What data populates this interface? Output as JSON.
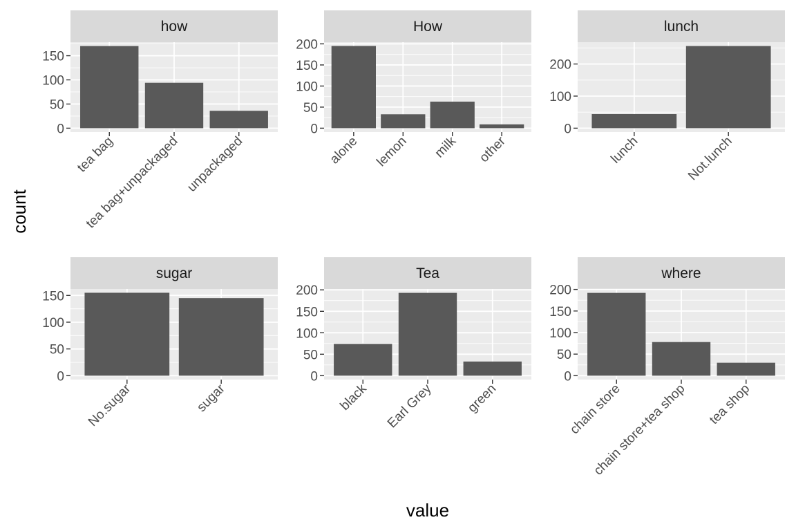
{
  "chart_data": {
    "type": "bar",
    "layout": "facet-wrap 2 rows x 3 columns, free scales",
    "xlabel": "value",
    "ylabel": "count",
    "colors": {
      "bar": "#595959",
      "panel_background": "#EBEBEB",
      "strip_background": "#D9D9D9",
      "gridline": "#FFFFFF",
      "tick_label": "#4D4D4D"
    },
    "grid": true,
    "facets": [
      {
        "title": "how",
        "categories": [
          "tea bag",
          "tea bag+unpackaged",
          "unpackaged"
        ],
        "values": [
          170,
          94,
          36
        ],
        "yticks": [
          0,
          50,
          100,
          150
        ],
        "ylim": [
          0,
          178
        ]
      },
      {
        "title": "How",
        "categories": [
          "alone",
          "lemon",
          "milk",
          "other"
        ],
        "values": [
          195,
          33,
          63,
          9
        ],
        "yticks": [
          0,
          50,
          100,
          150,
          200
        ],
        "ylim": [
          0,
          204
        ]
      },
      {
        "title": "lunch",
        "categories": [
          "lunch",
          "Not.lunch"
        ],
        "values": [
          44,
          256
        ],
        "yticks": [
          0,
          100,
          200
        ],
        "ylim": [
          0,
          268
        ]
      },
      {
        "title": "sugar",
        "categories": [
          "No.sugar",
          "sugar"
        ],
        "values": [
          155,
          145
        ],
        "yticks": [
          0,
          50,
          100,
          150
        ],
        "ylim": [
          0,
          162
        ]
      },
      {
        "title": "Tea",
        "categories": [
          "black",
          "Earl Grey",
          "green"
        ],
        "values": [
          74,
          193,
          33
        ],
        "yticks": [
          0,
          50,
          100,
          150,
          200
        ],
        "ylim": [
          0,
          202
        ]
      },
      {
        "title": "where",
        "categories": [
          "chain store",
          "chain store+tea shop",
          "tea shop"
        ],
        "values": [
          192,
          78,
          30
        ],
        "yticks": [
          0,
          50,
          100,
          150,
          200
        ],
        "ylim": [
          0,
          201
        ]
      }
    ]
  }
}
